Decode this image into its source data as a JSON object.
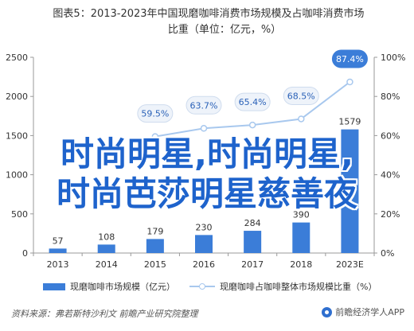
{
  "title_line1": "图表5：2013-2023年中国现磨咖啡消费市场规模及占咖啡消费市场",
  "title_line2": "比重（单位：亿元，%）",
  "overlay_line1": "时尚明星,时尚明星,",
  "overlay_line2": "时尚芭莎明星慈善夜",
  "legend": {
    "bar_label": "现磨咖啡市场规模（亿元）",
    "line_label": "现磨咖啡占咖啡整体市场规模比重（%）"
  },
  "source": "资料来源：弗若斯特沙利文 前瞻产业研究院整理",
  "brand": "前瞻经济学人APP",
  "colors": {
    "bar": "#3b7dd8",
    "line": "#a8c8ee",
    "label_bg": "#eef3fa",
    "label_bg_highlight": "#3b7dd8"
  },
  "chart_data": {
    "type": "bar",
    "categories": [
      "2013",
      "2014",
      "2015",
      "2016",
      "2017",
      "2018",
      "2023E"
    ],
    "series": [
      {
        "name": "现磨咖啡市场规模（亿元）",
        "type": "bar",
        "axis": "left",
        "values": [
          57,
          108,
          179,
          230,
          284,
          390,
          1579
        ]
      },
      {
        "name": "现磨咖啡占咖啡整体市场规模比重（%）",
        "type": "line",
        "axis": "right",
        "values": [
          null,
          null,
          59.5,
          63.7,
          65.4,
          68.5,
          87.4
        ],
        "labels": [
          "",
          "",
          "59.5%",
          "63.7%",
          "65.4%",
          "68.5%",
          "87.4%"
        ]
      }
    ],
    "bar_labels": [
      "57",
      "108",
      "179",
      "230",
      "284",
      "390",
      "1579"
    ],
    "ylim_left": [
      0,
      2500
    ],
    "yticks_left": [
      "0",
      "500",
      "1000",
      "1500",
      "2000",
      "2500"
    ],
    "ylim_right": [
      0,
      100
    ],
    "yticks_right": [
      "0%",
      "20%",
      "40%",
      "60%",
      "80%",
      "100%"
    ],
    "legend_position": "bottom"
  }
}
